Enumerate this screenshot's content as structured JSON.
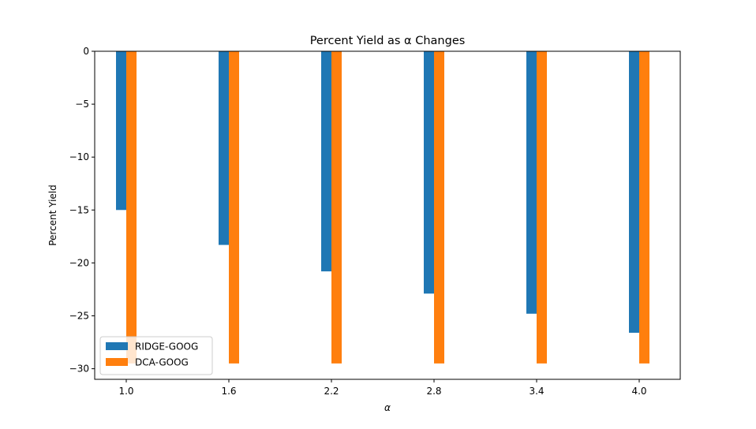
{
  "chart_data": {
    "type": "bar",
    "title": "Percent Yield as α Changes",
    "xlabel": "α",
    "ylabel": "Percent Yield",
    "categories": [
      "1.0",
      "1.6",
      "2.2",
      "2.8",
      "3.4",
      "4.0"
    ],
    "series": [
      {
        "name": "RIDGE-GOOG",
        "color": "#1f77b4",
        "values": [
          -15.0,
          -18.3,
          -20.8,
          -22.9,
          -24.8,
          -26.6
        ]
      },
      {
        "name": "DCA-GOOG",
        "color": "#ff7f0e",
        "values": [
          -29.5,
          -29.5,
          -29.5,
          -29.5,
          -29.5,
          -29.5
        ]
      }
    ],
    "ylim": [
      -31,
      0
    ],
    "yticks": [
      0,
      -5,
      -10,
      -15,
      -20,
      -25,
      -30
    ],
    "ytick_labels": [
      "0",
      "−5",
      "−10",
      "−15",
      "−20",
      "−25",
      "−30"
    ],
    "grid": false,
    "legend_position": "lower-left"
  }
}
